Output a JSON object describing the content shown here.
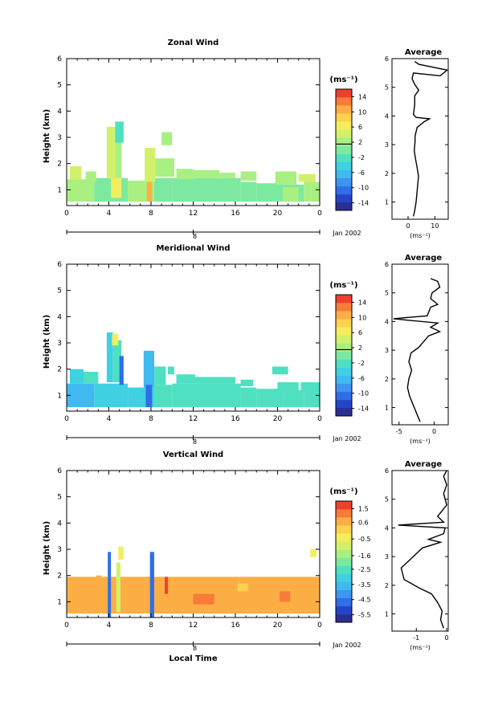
{
  "colorscale": [
    "#2b2f8f",
    "#2445c9",
    "#2f6ee8",
    "#3d95f0",
    "#40b8f0",
    "#3fd1e2",
    "#4ee0c1",
    "#7de9a0",
    "#a9ef82",
    "#d3f06a",
    "#f4ed5e",
    "#fdd24f",
    "#fcae44",
    "#f87b38",
    "#ee3f2f"
  ],
  "chart_data": [
    {
      "type": "heatmap",
      "title": "Zonal Wind",
      "ylabel": "Height (km)",
      "xlabel": "",
      "xticks": [
        "0",
        "4",
        "8",
        "12",
        "16",
        "20",
        "0"
      ],
      "yticks": [
        "1",
        "2",
        "3",
        "4",
        "5",
        "6"
      ],
      "xlim": [
        0,
        24
      ],
      "ylim": [
        0.4,
        6
      ],
      "date_marker": "8",
      "date_label": "Jan 2002",
      "colorbar": {
        "unit": "(ms⁻¹)",
        "ticks": [
          "14",
          "10",
          "6",
          "2",
          "-2",
          "-6",
          "-10",
          "-14"
        ],
        "range": [
          -16,
          16
        ],
        "zero_line": 1.5
      },
      "blocks": [
        [
          0,
          2.6,
          0.55,
          1.4,
          3
        ],
        [
          2.6,
          5.8,
          0.55,
          1.45,
          1
        ],
        [
          5.8,
          8.3,
          0.55,
          1.35,
          1.5
        ],
        [
          8.3,
          10,
          0.55,
          1.45,
          1
        ],
        [
          10,
          16.5,
          0.55,
          1.45,
          0.5
        ],
        [
          16.5,
          18,
          0.55,
          1.3,
          0
        ],
        [
          18,
          20.5,
          0.55,
          1.25,
          0.5
        ],
        [
          20.5,
          22.5,
          0.55,
          1.2,
          1
        ],
        [
          22.5,
          24,
          0.55,
          1.3,
          1.5
        ],
        [
          0.3,
          1.4,
          1.4,
          1.9,
          4
        ],
        [
          1.8,
          2.8,
          1.3,
          1.7,
          3
        ],
        [
          3.8,
          4.6,
          1.45,
          3.4,
          4
        ],
        [
          4.6,
          5.2,
          1.45,
          3.2,
          2.5
        ],
        [
          4.6,
          5.4,
          2.8,
          3.6,
          -2
        ],
        [
          4.2,
          5.2,
          0.7,
          1.45,
          7
        ],
        [
          7.4,
          8.4,
          1.3,
          2.6,
          5
        ],
        [
          7.6,
          8.1,
          0.55,
          1.3,
          11
        ],
        [
          8.4,
          10.2,
          1.5,
          2.2,
          2
        ],
        [
          9,
          10,
          2.7,
          3.2,
          2
        ],
        [
          10.4,
          12,
          1.4,
          1.8,
          3
        ],
        [
          12,
          14.5,
          1.45,
          1.75,
          2
        ],
        [
          14.5,
          16,
          1.45,
          1.65,
          2
        ],
        [
          16.5,
          18,
          1.35,
          1.7,
          3
        ],
        [
          19.8,
          21.8,
          1.2,
          1.7,
          1.5
        ],
        [
          22,
          23.6,
          1.3,
          1.6,
          4
        ],
        [
          20.5,
          22,
          0.55,
          1.1,
          3
        ]
      ],
      "average": {
        "xlim": [
          -6,
          15
        ],
        "ylim": [
          0.4,
          6
        ],
        "xticks": [
          "0",
          "10"
        ],
        "xlabel": "(ms⁻¹)",
        "title": "Average",
        "profile": [
          [
            2,
            0.5
          ],
          [
            2.5,
            0.7
          ],
          [
            3,
            1.0
          ],
          [
            3.3,
            1.3
          ],
          [
            3.6,
            1.6
          ],
          [
            3.9,
            1.9
          ],
          [
            3.4,
            2.2
          ],
          [
            2.8,
            2.5
          ],
          [
            2.3,
            2.8
          ],
          [
            2.6,
            3.1
          ],
          [
            2.6,
            3.3
          ],
          [
            3.4,
            3.6
          ],
          [
            6,
            3.8
          ],
          [
            8,
            3.9
          ],
          [
            3,
            3.95
          ],
          [
            2,
            4.05
          ],
          [
            2.5,
            4.4
          ],
          [
            2.5,
            4.7
          ],
          [
            4,
            4.9
          ],
          [
            2.5,
            5.1
          ],
          [
            1.5,
            5.3
          ],
          [
            2,
            5.5
          ],
          [
            12,
            5.4
          ],
          [
            14.6,
            5.6
          ],
          [
            4,
            5.8
          ],
          [
            2.5,
            5.9
          ]
        ]
      }
    },
    {
      "type": "heatmap",
      "title": "Meridional Wind",
      "ylabel": "Height (km)",
      "xlabel": "",
      "xticks": [
        "0",
        "4",
        "8",
        "12",
        "16",
        "20",
        "0"
      ],
      "yticks": [
        "1",
        "2",
        "3",
        "4",
        "5",
        "6"
      ],
      "xlim": [
        0,
        24
      ],
      "ylim": [
        0.4,
        6
      ],
      "date_marker": "8",
      "date_label": "Jan 2002",
      "colorbar": {
        "unit": "(ms⁻¹)",
        "ticks": [
          "14",
          "10",
          "6",
          "2",
          "-2",
          "-6",
          "-10",
          "-14"
        ],
        "range": [
          -16,
          16
        ],
        "zero_line": 1.5
      },
      "blocks": [
        [
          0,
          2.6,
          0.55,
          1.45,
          -7
        ],
        [
          2.6,
          5.8,
          0.55,
          1.45,
          -4
        ],
        [
          5.8,
          8.3,
          0.55,
          1.3,
          -5
        ],
        [
          8.3,
          10,
          0.55,
          1.4,
          -3
        ],
        [
          10,
          16.5,
          0.55,
          1.45,
          -2.5
        ],
        [
          16.5,
          18,
          0.55,
          1.3,
          -1.5
        ],
        [
          18,
          20.5,
          0.55,
          1.25,
          -2
        ],
        [
          20.5,
          22.5,
          0.55,
          1.2,
          -1.5
        ],
        [
          22.5,
          24,
          0.55,
          1.3,
          -2
        ],
        [
          0.3,
          1.6,
          1.45,
          2.0,
          -5
        ],
        [
          1.6,
          3,
          1.45,
          1.9,
          -3
        ],
        [
          3.8,
          4.4,
          1.5,
          3.4,
          -4
        ],
        [
          4.4,
          5.2,
          1.5,
          3.1,
          -2.5
        ],
        [
          4.3,
          4.9,
          2.9,
          3.35,
          6
        ],
        [
          5,
          5.4,
          1.4,
          2.5,
          -11
        ],
        [
          7.3,
          8.3,
          1.3,
          2.7,
          -7
        ],
        [
          7.5,
          8.1,
          0.55,
          1.4,
          -11
        ],
        [
          8.3,
          9.4,
          1.4,
          2.1,
          -3
        ],
        [
          9.6,
          10.2,
          1.8,
          2.1,
          -2.5
        ],
        [
          10.4,
          12.2,
          1.45,
          1.8,
          -3
        ],
        [
          12,
          16,
          1.45,
          1.7,
          -2
        ],
        [
          16.5,
          17.7,
          1.35,
          1.6,
          -2.5
        ],
        [
          20,
          22,
          1.1,
          1.5,
          -1.5
        ],
        [
          19.5,
          21,
          1.8,
          2.1,
          -2.5
        ],
        [
          22.2,
          24,
          1.2,
          1.5,
          -2.5
        ]
      ],
      "average": {
        "xlim": [
          -6,
          2
        ],
        "ylim": [
          0.4,
          6
        ],
        "xticks": [
          "-5",
          "0"
        ],
        "xlabel": "(ms⁻¹)",
        "title": "Average",
        "profile": [
          [
            -2,
            0.5
          ],
          [
            -2.5,
            0.8
          ],
          [
            -3,
            1.1
          ],
          [
            -3.5,
            1.4
          ],
          [
            -3.8,
            1.7
          ],
          [
            -3.6,
            2.0
          ],
          [
            -3.2,
            2.3
          ],
          [
            -3.6,
            2.6
          ],
          [
            -3.3,
            2.9
          ],
          [
            -2.2,
            3.1
          ],
          [
            -1.5,
            3.3
          ],
          [
            -0.8,
            3.5
          ],
          [
            0.8,
            3.65
          ],
          [
            -0.5,
            3.8
          ],
          [
            0.5,
            3.95
          ],
          [
            -4,
            4.05
          ],
          [
            -5.8,
            4.1
          ],
          [
            -1,
            4.2
          ],
          [
            -0.5,
            4.5
          ],
          [
            0.5,
            4.6
          ],
          [
            -0.5,
            4.8
          ],
          [
            -0.3,
            5.0
          ],
          [
            0.8,
            5.2
          ],
          [
            0.5,
            5.4
          ],
          [
            -0.5,
            5.5
          ]
        ]
      }
    },
    {
      "type": "heatmap",
      "title": "Vertical Wind",
      "ylabel": "Height (km)",
      "xlabel": "Local Time",
      "xticks": [
        "0",
        "4",
        "8",
        "12",
        "16",
        "20",
        "0"
      ],
      "yticks": [
        "1",
        "2",
        "3",
        "4",
        "5",
        "6"
      ],
      "xlim": [
        0,
        24
      ],
      "ylim": [
        0.4,
        6
      ],
      "date_marker": "8",
      "date_label": "Jan 2002",
      "colorbar": {
        "unit": "(ms⁻¹)",
        "ticks": [
          "1.5",
          "0.6",
          "-0.5",
          "-1.6",
          "-2.5",
          "-3.5",
          "-4.5",
          "-5.5"
        ],
        "range": [
          -6,
          2
        ],
        "zero_line": null
      },
      "blocks": [
        [
          0,
          24,
          0.55,
          1.95,
          0.6
        ],
        [
          0.3,
          3,
          1.2,
          1.4,
          0.9
        ],
        [
          3.9,
          4.2,
          0.4,
          2.9,
          -4.5
        ],
        [
          4.7,
          5.1,
          0.6,
          2.5,
          -1.2
        ],
        [
          4.9,
          5.4,
          2.6,
          3.1,
          -0.3
        ],
        [
          7.9,
          8.3,
          0.4,
          2.9,
          -4.6
        ],
        [
          9.3,
          9.6,
          1.3,
          1.95,
          1.5
        ],
        [
          12,
          14,
          0.9,
          1.3,
          1.0
        ],
        [
          16.2,
          17.2,
          1.4,
          1.7,
          0.3
        ],
        [
          20.2,
          21.2,
          1.0,
          1.4,
          1.1
        ],
        [
          23.1,
          23.7,
          2.7,
          3.0,
          -0.3
        ],
        [
          2.8,
          3.3,
          1.9,
          2.0,
          0.9
        ]
      ],
      "average": {
        "xlim": [
          -1.8,
          0.05
        ],
        "ylim": [
          0.4,
          6
        ],
        "xticks": [
          "-1",
          "0"
        ],
        "xlabel": "(ms⁻¹)",
        "title": "Average",
        "profile": [
          [
            -0.1,
            0.5
          ],
          [
            -0.2,
            0.8
          ],
          [
            -0.15,
            1.1
          ],
          [
            -0.3,
            1.4
          ],
          [
            -0.5,
            1.7
          ],
          [
            -0.9,
            1.9
          ],
          [
            -1.4,
            2.2
          ],
          [
            -1.5,
            2.6
          ],
          [
            -1.2,
            2.9
          ],
          [
            -0.8,
            3.3
          ],
          [
            -0.2,
            3.5
          ],
          [
            -0.6,
            3.6
          ],
          [
            -0.1,
            3.8
          ],
          [
            -0.05,
            4.0
          ],
          [
            -1.6,
            4.1
          ],
          [
            -0.1,
            4.2
          ],
          [
            -0.3,
            4.4
          ],
          [
            0,
            4.8
          ],
          [
            -0.1,
            5.2
          ],
          [
            0,
            5.5
          ],
          [
            -0.1,
            5.8
          ],
          [
            0,
            6.0
          ]
        ]
      }
    }
  ]
}
